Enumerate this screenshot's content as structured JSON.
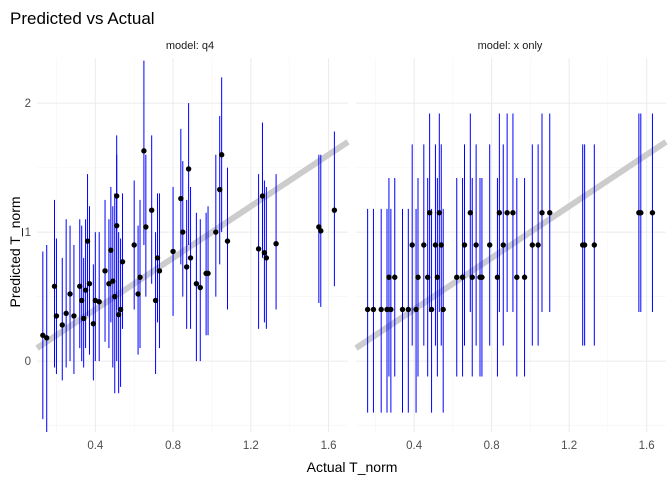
{
  "chart_data": {
    "type": "scatter",
    "title": "Predicted vs Actual",
    "xlabel": "Actual T_norm",
    "ylabel": "Predicted T_norm",
    "x_ticks": [
      0.4,
      0.8,
      1.2,
      1.6
    ],
    "y_ticks": [
      0,
      1,
      2
    ],
    "xlim": [
      0.1,
      1.7
    ],
    "ylim": [
      -0.55,
      2.35
    ],
    "grid": true,
    "reference_line": {
      "slope": 1,
      "intercept": 0,
      "color": "#cccccc"
    },
    "colors": {
      "point": "#000000",
      "errorbar": "#0000ff",
      "grid_major": "#ebebeb",
      "grid_minor": "#f5f5f5"
    },
    "panels": [
      {
        "label": "model: q4",
        "points": [
          {
            "x": 0.13,
            "y": 0.2,
            "lo": -0.45,
            "hi": 0.85
          },
          {
            "x": 0.15,
            "y": 0.18,
            "lo": -0.55,
            "hi": 0.9
          },
          {
            "x": 0.19,
            "y": 0.58,
            "lo": -0.05,
            "hi": 1.25
          },
          {
            "x": 0.2,
            "y": 0.35,
            "lo": -0.1,
            "hi": 0.95
          },
          {
            "x": 0.23,
            "y": 0.28,
            "lo": -0.15,
            "hi": 0.8
          },
          {
            "x": 0.25,
            "y": 0.37,
            "lo": -0.05,
            "hi": 1.1
          },
          {
            "x": 0.27,
            "y": 0.52,
            "lo": 0.0,
            "hi": 1.05
          },
          {
            "x": 0.29,
            "y": 0.35,
            "lo": -0.1,
            "hi": 0.9
          },
          {
            "x": 0.32,
            "y": 0.58,
            "lo": 0.1,
            "hi": 1.1
          },
          {
            "x": 0.33,
            "y": 0.47,
            "lo": 0.0,
            "hi": 1.05
          },
          {
            "x": 0.34,
            "y": 0.33,
            "lo": -0.05,
            "hi": 0.8
          },
          {
            "x": 0.35,
            "y": 0.55,
            "lo": 0.1,
            "hi": 1.1
          },
          {
            "x": 0.36,
            "y": 0.93,
            "lo": 0.35,
            "hi": 1.45
          },
          {
            "x": 0.37,
            "y": 0.6,
            "lo": 0.05,
            "hi": 1.2
          },
          {
            "x": 0.39,
            "y": 0.29,
            "lo": -0.15,
            "hi": 0.75
          },
          {
            "x": 0.4,
            "y": 0.47,
            "lo": 0.0,
            "hi": 1.0
          },
          {
            "x": 0.42,
            "y": 0.46,
            "lo": 0.0,
            "hi": 1.0
          },
          {
            "x": 0.45,
            "y": 0.7,
            "lo": 0.15,
            "hi": 1.25
          },
          {
            "x": 0.47,
            "y": 0.6,
            "lo": 0.1,
            "hi": 1.1
          },
          {
            "x": 0.48,
            "y": 0.86,
            "lo": 0.3,
            "hi": 1.35
          },
          {
            "x": 0.49,
            "y": 0.62,
            "lo": -0.05,
            "hi": 1.2
          },
          {
            "x": 0.5,
            "y": 0.5,
            "lo": -0.25,
            "hi": 1.3
          },
          {
            "x": 0.51,
            "y": 1.05,
            "lo": 0.0,
            "hi": 1.6
          },
          {
            "x": 0.51,
            "y": 1.28,
            "lo": 0.4,
            "hi": 1.75
          },
          {
            "x": 0.52,
            "y": 0.36,
            "lo": -0.25,
            "hi": 1.0
          },
          {
            "x": 0.53,
            "y": 0.4,
            "lo": -0.2,
            "hi": 0.95
          },
          {
            "x": 0.54,
            "y": 0.77,
            "lo": 0.25,
            "hi": 1.3
          },
          {
            "x": 0.6,
            "y": 0.9,
            "lo": 0.4,
            "hi": 1.4
          },
          {
            "x": 0.62,
            "y": 0.52,
            "lo": 0.05,
            "hi": 1.05
          },
          {
            "x": 0.63,
            "y": 0.65,
            "lo": 0.1,
            "hi": 1.25
          },
          {
            "x": 0.65,
            "y": 1.63,
            "lo": 0.9,
            "hi": 2.33
          },
          {
            "x": 0.66,
            "y": 1.04,
            "lo": 0.5,
            "hi": 1.6
          },
          {
            "x": 0.69,
            "y": 1.17,
            "lo": 0.6,
            "hi": 1.75
          },
          {
            "x": 0.71,
            "y": 0.47,
            "lo": -0.1,
            "hi": 1.0
          },
          {
            "x": 0.72,
            "y": 0.8,
            "lo": 0.3,
            "hi": 1.3
          },
          {
            "x": 0.73,
            "y": 0.7,
            "lo": 0.1,
            "hi": 1.3
          },
          {
            "x": 0.8,
            "y": 0.85,
            "lo": 0.35,
            "hi": 1.35
          },
          {
            "x": 0.84,
            "y": 1.26,
            "lo": 0.75,
            "hi": 1.8
          },
          {
            "x": 0.85,
            "y": 1.0,
            "lo": 0.5,
            "hi": 1.55
          },
          {
            "x": 0.87,
            "y": 0.73,
            "lo": 0.25,
            "hi": 1.25
          },
          {
            "x": 0.88,
            "y": 1.49,
            "lo": 0.9,
            "hi": 2.0
          },
          {
            "x": 0.89,
            "y": 0.8,
            "lo": 0.25,
            "hi": 1.35
          },
          {
            "x": 0.92,
            "y": 0.6,
            "lo": 0.0,
            "hi": 1.15
          },
          {
            "x": 0.94,
            "y": 0.57,
            "lo": 0.0,
            "hi": 1.1
          },
          {
            "x": 0.97,
            "y": 0.68,
            "lo": 0.2,
            "hi": 1.15
          },
          {
            "x": 0.98,
            "y": 0.68,
            "lo": 0.2,
            "hi": 1.2
          },
          {
            "x": 1.02,
            "y": 1.0,
            "lo": 0.5,
            "hi": 1.6
          },
          {
            "x": 1.04,
            "y": 1.33,
            "lo": 0.75,
            "hi": 1.9
          },
          {
            "x": 1.05,
            "y": 1.6,
            "lo": 1.0,
            "hi": 2.2
          },
          {
            "x": 1.08,
            "y": 0.93,
            "lo": 0.4,
            "hi": 1.5
          },
          {
            "x": 1.24,
            "y": 0.87,
            "lo": 0.25,
            "hi": 1.45
          },
          {
            "x": 1.26,
            "y": 1.28,
            "lo": 0.8,
            "hi": 1.85
          },
          {
            "x": 1.27,
            "y": 0.84,
            "lo": 0.3,
            "hi": 1.4
          },
          {
            "x": 1.28,
            "y": 0.8,
            "lo": 0.25,
            "hi": 1.35
          },
          {
            "x": 1.33,
            "y": 0.91,
            "lo": 0.4,
            "hi": 1.45
          },
          {
            "x": 1.55,
            "y": 1.04,
            "lo": 0.45,
            "hi": 1.6
          },
          {
            "x": 1.56,
            "y": 1.01,
            "lo": 0.42,
            "hi": 1.6
          },
          {
            "x": 1.63,
            "y": 1.17,
            "lo": 0.58,
            "hi": 1.78
          }
        ]
      },
      {
        "label": "model: x only",
        "points": [
          {
            "x": 0.16,
            "y": 0.4,
            "lo": -0.4,
            "hi": 1.18
          },
          {
            "x": 0.19,
            "y": 0.4,
            "lo": -0.4,
            "hi": 1.18
          },
          {
            "x": 0.23,
            "y": 0.4,
            "lo": -0.4,
            "hi": 1.18
          },
          {
            "x": 0.26,
            "y": 0.4,
            "lo": -0.4,
            "hi": 1.18
          },
          {
            "x": 0.27,
            "y": 0.65,
            "lo": -0.12,
            "hi": 1.42
          },
          {
            "x": 0.28,
            "y": 0.4,
            "lo": -0.4,
            "hi": 1.18
          },
          {
            "x": 0.3,
            "y": 0.65,
            "lo": -0.12,
            "hi": 1.42
          },
          {
            "x": 0.34,
            "y": 0.4,
            "lo": -0.4,
            "hi": 1.18
          },
          {
            "x": 0.37,
            "y": 0.4,
            "lo": -0.4,
            "hi": 1.18
          },
          {
            "x": 0.39,
            "y": 0.9,
            "lo": 0.12,
            "hi": 1.68
          },
          {
            "x": 0.41,
            "y": 0.4,
            "lo": -0.4,
            "hi": 1.18
          },
          {
            "x": 0.42,
            "y": 0.65,
            "lo": -0.12,
            "hi": 1.42
          },
          {
            "x": 0.45,
            "y": 0.9,
            "lo": 0.12,
            "hi": 1.68
          },
          {
            "x": 0.47,
            "y": 0.65,
            "lo": -0.12,
            "hi": 1.42
          },
          {
            "x": 0.48,
            "y": 1.15,
            "lo": 0.38,
            "hi": 1.92
          },
          {
            "x": 0.49,
            "y": 0.4,
            "lo": -0.4,
            "hi": 1.18
          },
          {
            "x": 0.51,
            "y": 0.9,
            "lo": 0.12,
            "hi": 1.68
          },
          {
            "x": 0.52,
            "y": 0.65,
            "lo": -0.12,
            "hi": 1.42
          },
          {
            "x": 0.53,
            "y": 1.15,
            "lo": 0.38,
            "hi": 1.92
          },
          {
            "x": 0.54,
            "y": 0.9,
            "lo": 0.12,
            "hi": 1.68
          },
          {
            "x": 0.55,
            "y": 0.4,
            "lo": -0.4,
            "hi": 1.18
          },
          {
            "x": 0.62,
            "y": 0.65,
            "lo": -0.12,
            "hi": 1.42
          },
          {
            "x": 0.65,
            "y": 0.65,
            "lo": -0.12,
            "hi": 1.42
          },
          {
            "x": 0.66,
            "y": 0.9,
            "lo": 0.12,
            "hi": 1.68
          },
          {
            "x": 0.69,
            "y": 1.15,
            "lo": 0.38,
            "hi": 1.92
          },
          {
            "x": 0.7,
            "y": 0.65,
            "lo": -0.12,
            "hi": 1.42
          },
          {
            "x": 0.72,
            "y": 0.9,
            "lo": 0.12,
            "hi": 1.68
          },
          {
            "x": 0.74,
            "y": 0.65,
            "lo": -0.12,
            "hi": 1.42
          },
          {
            "x": 0.75,
            "y": 0.65,
            "lo": -0.12,
            "hi": 1.42
          },
          {
            "x": 0.79,
            "y": 0.9,
            "lo": 0.12,
            "hi": 1.68
          },
          {
            "x": 0.83,
            "y": 0.65,
            "lo": -0.12,
            "hi": 1.42
          },
          {
            "x": 0.84,
            "y": 1.15,
            "lo": 0.38,
            "hi": 1.92
          },
          {
            "x": 0.86,
            "y": 0.9,
            "lo": 0.12,
            "hi": 1.68
          },
          {
            "x": 0.88,
            "y": 1.15,
            "lo": 0.38,
            "hi": 1.92
          },
          {
            "x": 0.91,
            "y": 1.15,
            "lo": 0.38,
            "hi": 1.92
          },
          {
            "x": 0.93,
            "y": 0.65,
            "lo": -0.12,
            "hi": 1.42
          },
          {
            "x": 0.97,
            "y": 0.65,
            "lo": -0.12,
            "hi": 1.42
          },
          {
            "x": 1.01,
            "y": 0.9,
            "lo": 0.12,
            "hi": 1.68
          },
          {
            "x": 1.04,
            "y": 0.9,
            "lo": 0.12,
            "hi": 1.68
          },
          {
            "x": 1.06,
            "y": 1.15,
            "lo": 0.38,
            "hi": 1.92
          },
          {
            "x": 1.1,
            "y": 1.15,
            "lo": 0.38,
            "hi": 1.92
          },
          {
            "x": 1.27,
            "y": 0.9,
            "lo": 0.12,
            "hi": 1.68
          },
          {
            "x": 1.28,
            "y": 0.9,
            "lo": 0.12,
            "hi": 1.68
          },
          {
            "x": 1.33,
            "y": 0.9,
            "lo": 0.12,
            "hi": 1.68
          },
          {
            "x": 1.56,
            "y": 1.15,
            "lo": 0.38,
            "hi": 1.92
          },
          {
            "x": 1.57,
            "y": 1.15,
            "lo": 0.38,
            "hi": 1.92
          },
          {
            "x": 1.63,
            "y": 1.15,
            "lo": 0.38,
            "hi": 1.92
          }
        ]
      }
    ]
  }
}
